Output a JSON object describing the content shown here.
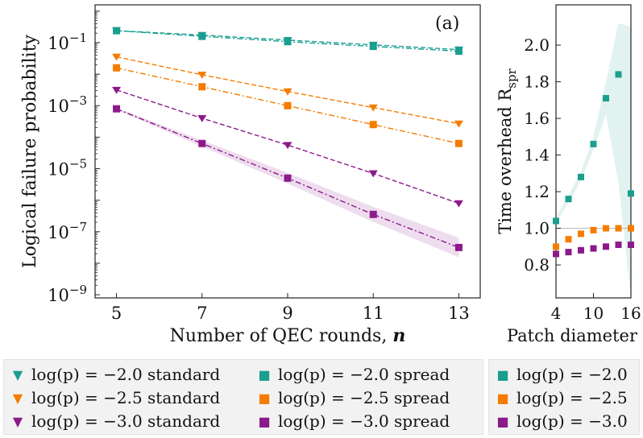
{
  "panel_a": {
    "label": "(a)",
    "xlabel": "Number of QEC rounds, n",
    "ylabel": "Logical failure probability",
    "xticks": [
      "5",
      "7",
      "9",
      "11",
      "13"
    ],
    "yticks": [
      {
        "base": "10",
        "exp": "-1"
      },
      {
        "base": "10",
        "exp": "-3"
      },
      {
        "base": "10",
        "exp": "-5"
      },
      {
        "base": "10",
        "exp": "-7"
      },
      {
        "base": "10",
        "exp": "-9"
      }
    ]
  },
  "panel_b": {
    "ylabel": "Time overhead R",
    "ylabel_sub": "spr",
    "xlabel": "Patch diameter",
    "xticks": [
      "4",
      "10",
      "16"
    ],
    "yticks": [
      "0.8",
      "1.0",
      "1.2",
      "1.4",
      "1.6",
      "1.8",
      "2.0"
    ]
  },
  "legend": {
    "main": [
      {
        "marker": "▼",
        "color": "#1a9e8f",
        "text": "log(p) = −2.0  standard"
      },
      {
        "marker": "▼",
        "color": "#f57c00",
        "text": "log(p) = −2.5  standard"
      },
      {
        "marker": "▼",
        "color": "#8b1a8b",
        "text": "log(p) = −3.0  standard"
      },
      {
        "marker": "■",
        "color": "#1a9e8f",
        "text": "log(p) = −2.0  spread"
      },
      {
        "marker": "■",
        "color": "#f57c00",
        "text": "log(p) = −2.5  spread"
      },
      {
        "marker": "■",
        "color": "#8b1a8b",
        "text": "log(p) = −3.0  spread"
      }
    ],
    "side": [
      {
        "marker": "■",
        "color": "#1a9e8f",
        "text": "log(p) = −2.0"
      },
      {
        "marker": "■",
        "color": "#f57c00",
        "text": "log(p) = −2.5"
      },
      {
        "marker": "■",
        "color": "#8b1a8b",
        "text": "log(p) = −3.0"
      }
    ]
  },
  "chart_data": [
    {
      "type": "line",
      "title": "(a)",
      "xlabel": "Number of QEC rounds, n",
      "ylabel": "Logical failure probability",
      "yscale": "log",
      "xlim": [
        4.5,
        13.5
      ],
      "ylim_log10": [
        -9.1,
        0.2
      ],
      "x": [
        5,
        7,
        9,
        11,
        13
      ],
      "series": [
        {
          "name": "log(p) = -2.0 standard",
          "marker": "triangle",
          "color": "#1a9e8f",
          "log10_values": [
            -0.62,
            -0.76,
            -0.92,
            -1.07,
            -1.22
          ]
        },
        {
          "name": "log(p) = -2.0 spread",
          "marker": "square",
          "color": "#1a9e8f",
          "log10_values": [
            -0.62,
            -0.8,
            -0.97,
            -1.12,
            -1.27
          ]
        },
        {
          "name": "log(p) = -2.5 standard",
          "marker": "triangle",
          "color": "#f57c00",
          "log10_values": [
            -1.45,
            -2.02,
            -2.55,
            -3.06,
            -3.57
          ]
        },
        {
          "name": "log(p) = -2.5 spread",
          "marker": "square",
          "color": "#f57c00",
          "log10_values": [
            -1.8,
            -2.4,
            -3.0,
            -3.6,
            -4.2
          ]
        },
        {
          "name": "log(p) = -3.0 standard",
          "marker": "triangle",
          "color": "#8b1a8b",
          "log10_values": [
            -2.5,
            -3.4,
            -4.25,
            -5.15,
            -6.1
          ]
        },
        {
          "name": "log(p) = -3.0 spread",
          "marker": "square",
          "color": "#8b1a8b",
          "log10_values": [
            -3.1,
            -4.2,
            -5.3,
            -6.45,
            -7.5
          ]
        }
      ]
    },
    {
      "type": "scatter",
      "xlabel": "Patch diameter",
      "ylabel": "Time overhead R_spr",
      "xlim": [
        4,
        16
      ],
      "ylim": [
        0.62,
        2.22
      ],
      "reference_line": 1.0,
      "series": [
        {
          "name": "log(p) = -2.0",
          "color": "#1a9e8f",
          "x": [
            4,
            6,
            8,
            10,
            12,
            14,
            16
          ],
          "y": [
            1.04,
            1.16,
            1.28,
            1.46,
            1.71,
            1.84,
            1.19
          ],
          "band_low": [
            1.03,
            1.14,
            1.26,
            1.43,
            1.62,
            1.25,
            0.62
          ],
          "band_high": [
            1.06,
            1.18,
            1.31,
            1.5,
            1.8,
            2.12,
            2.1
          ]
        },
        {
          "name": "log(p) = -2.5",
          "color": "#f57c00",
          "x": [
            4,
            6,
            8,
            10,
            12,
            14,
            16
          ],
          "y": [
            0.9,
            0.94,
            0.97,
            0.99,
            1.0,
            1.0,
            1.0
          ]
        },
        {
          "name": "log(p) = -3.0",
          "color": "#8b1a8b",
          "x": [
            4,
            6,
            8,
            10,
            12,
            14,
            16
          ],
          "y": [
            0.86,
            0.87,
            0.88,
            0.89,
            0.9,
            0.91,
            0.91
          ]
        }
      ]
    }
  ]
}
